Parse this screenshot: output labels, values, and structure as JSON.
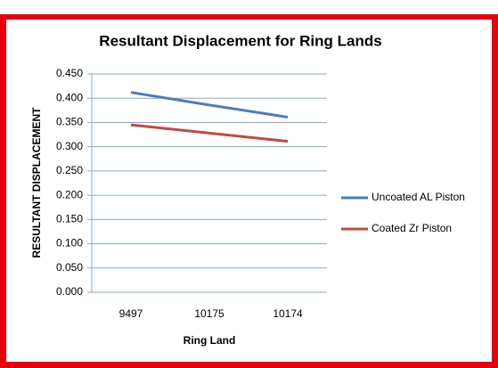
{
  "chart_data": {
    "type": "line",
    "title": "Resultant Displacement for Ring Lands",
    "x_label": "Ring Land",
    "y_label": "RESULTANT DISPLACEMENT",
    "categories": [
      "9497",
      "10175",
      "10174"
    ],
    "series": [
      {
        "name": "Uncoated AL Piston",
        "color": "#4a7ebb",
        "values": [
          0.412,
          0.386,
          0.361
        ]
      },
      {
        "name": "Coated Zr Piston",
        "color": "#be4b48",
        "values": [
          0.345,
          0.328,
          0.311
        ]
      }
    ],
    "ylim": [
      0,
      0.45
    ],
    "yticks": [
      {
        "value": 0,
        "label": "0.000"
      },
      {
        "value": 0.05,
        "label": "0.050"
      },
      {
        "value": 0.1,
        "label": "0.100"
      },
      {
        "value": 0.15,
        "label": "0.150"
      },
      {
        "value": 0.2,
        "label": "0.200"
      },
      {
        "value": 0.25,
        "label": "0.250"
      },
      {
        "value": 0.3,
        "label": "0.300"
      },
      {
        "value": 0.35,
        "label": "0.350"
      },
      {
        "value": 0.4,
        "label": "0.400"
      },
      {
        "value": 0.45,
        "label": "0.450"
      }
    ],
    "grid": true,
    "legend": "right"
  }
}
